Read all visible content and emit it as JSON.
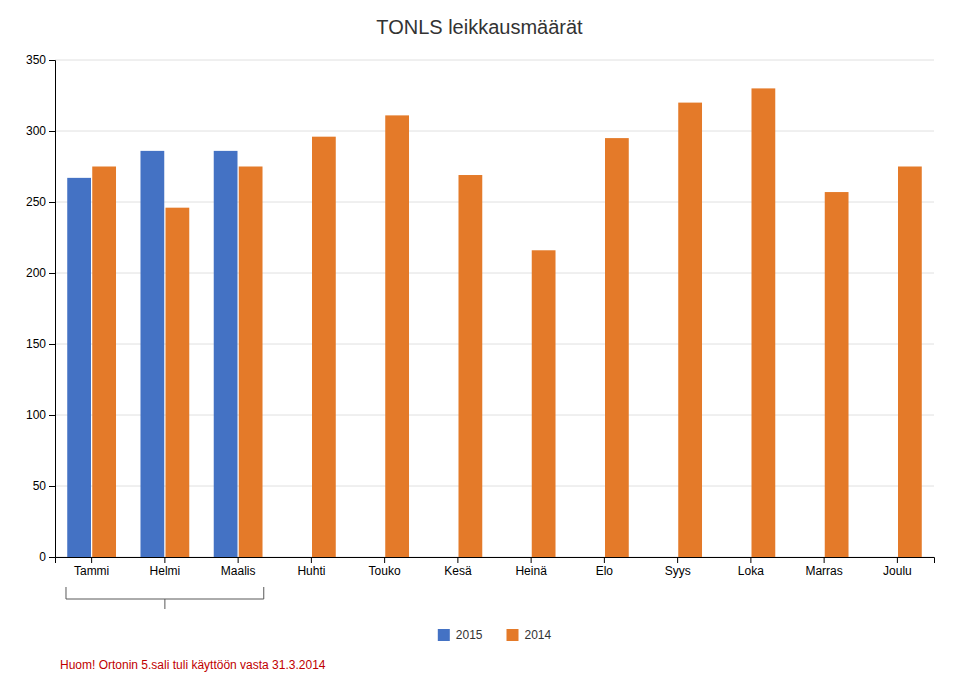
{
  "chart_data": {
    "type": "bar",
    "title": "TONLS leikkausmäärät",
    "categories": [
      "Tammi",
      "Helmi",
      "Maalis",
      "Huhti",
      "Touko",
      "Kesä",
      "Heinä",
      "Elo",
      "Syys",
      "Loka",
      "Marras",
      "Joulu"
    ],
    "series": [
      {
        "name": "2015",
        "color": "#4472C4",
        "values": [
          267,
          286,
          286,
          null,
          null,
          null,
          null,
          null,
          null,
          null,
          null,
          null
        ]
      },
      {
        "name": "2014",
        "color": "#E47A29",
        "values": [
          275,
          246,
          275,
          296,
          311,
          269,
          216,
          295,
          320,
          330,
          257,
          275
        ]
      }
    ],
    "ylim": [
      0,
      350
    ],
    "yticks": [
      0,
      50,
      100,
      150,
      200,
      250,
      300,
      350
    ],
    "grid": true,
    "legend": "bottom",
    "annotations": [
      {
        "text": "Huom! Ortonin 5.sali tuli käyttöön vasta 31.3.2014",
        "color": "#C00000"
      }
    ]
  }
}
